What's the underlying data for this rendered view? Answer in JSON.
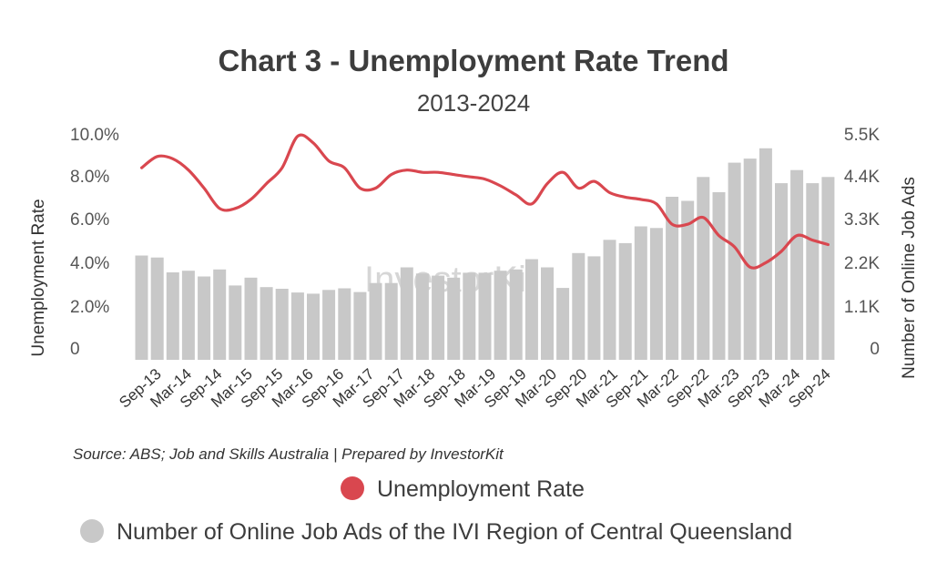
{
  "chart_data": {
    "type": "bar+line",
    "title": "Chart 3 - Unemployment Rate Trend",
    "subtitle": "2013-2024",
    "source": "Source: ABS; Job and Skills Australia | Prepared by InvestorKit",
    "watermark": "InvestorKit",
    "y_left": {
      "label": "Unemployment Rate",
      "ticks": [
        "10.0%",
        "8.0%",
        "6.0%",
        "4.0%",
        "2.0%",
        "0"
      ],
      "range": [
        0,
        10
      ]
    },
    "y_right": {
      "label": "Number of Online Job Ads",
      "ticks": [
        "5.5K",
        "4.4K",
        "3.3K",
        "2.2K",
        "1.1K",
        "0"
      ],
      "range": [
        0,
        5500
      ]
    },
    "x_tick_labels": [
      "Sep-13",
      "Mar-14",
      "Sep-14",
      "Mar-15",
      "Sep-15",
      "Mar-16",
      "Sep-16",
      "Mar-17",
      "Sep-17",
      "Mar-18",
      "Sep-18",
      "Mar-19",
      "Sep-19",
      "Mar-20",
      "Sep-20",
      "Mar-21",
      "Sep-21",
      "Mar-22",
      "Sep-22",
      "Mar-23",
      "Sep-23",
      "Mar-24",
      "Sep-24"
    ],
    "series": [
      {
        "name": "Number of Online Job Ads of the IVI Region of Central Queensland",
        "type": "bar",
        "axis": "right",
        "color": "#c8c8c8",
        "values": [
          2540,
          2490,
          2130,
          2170,
          2030,
          2200,
          1810,
          2000,
          1770,
          1730,
          1640,
          1610,
          1700,
          1740,
          1650,
          1870,
          1870,
          2250,
          2100,
          2050,
          2000,
          2120,
          2120,
          2170,
          2200,
          2450,
          2250,
          1750,
          2600,
          2520,
          2920,
          2840,
          3250,
          3210,
          3970,
          3870,
          4450,
          4080,
          4800,
          4900,
          5150,
          4300,
          4620,
          4300,
          4450
        ]
      },
      {
        "name": "Unemployment Rate",
        "type": "line",
        "axis": "left",
        "color": "#d9474f",
        "values": [
          8.5,
          9.0,
          8.9,
          8.4,
          7.6,
          6.7,
          6.7,
          7.1,
          7.8,
          8.5,
          9.9,
          9.6,
          8.8,
          8.5,
          7.6,
          7.6,
          8.2,
          8.4,
          8.3,
          8.3,
          8.2,
          8.1,
          8.0,
          7.7,
          7.3,
          6.9,
          7.8,
          8.3,
          7.6,
          7.9,
          7.4,
          7.2,
          7.1,
          6.9,
          6.0,
          6.0,
          6.3,
          5.5,
          5.0,
          4.1,
          4.3,
          4.8,
          5.5,
          5.3,
          5.1
        ]
      }
    ],
    "legend": {
      "position": "bottom",
      "items": [
        {
          "label": "Unemployment Rate",
          "color": "#d9474f"
        },
        {
          "label": "Number of Online Job Ads of the IVI Region of Central Queensland",
          "color": "#c8c8c8"
        }
      ]
    }
  }
}
